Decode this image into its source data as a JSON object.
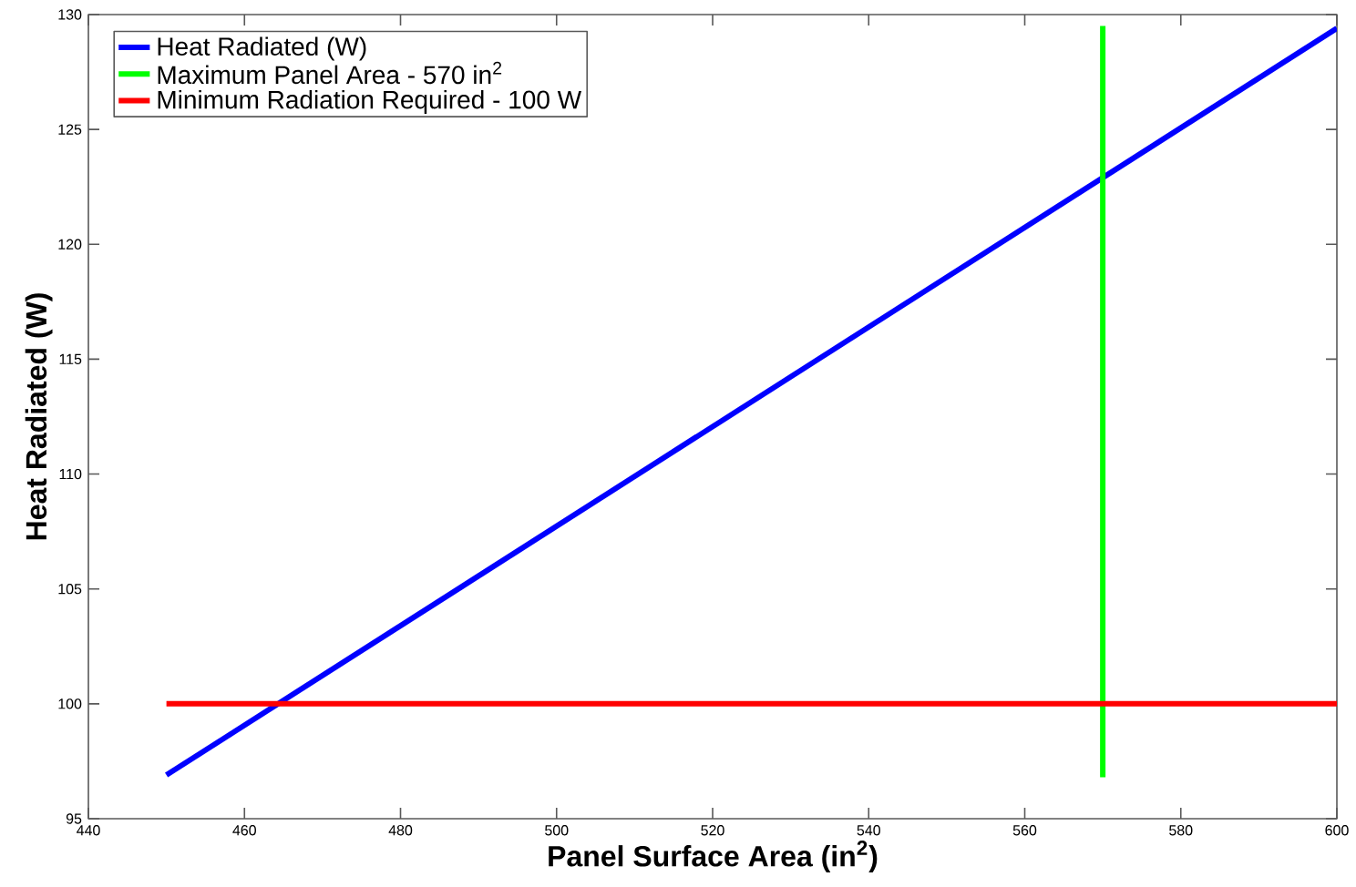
{
  "chart_data": {
    "type": "line",
    "xlabel": "Panel Surface Area (in$^{2}$)",
    "ylabel": "Heat Radiated (W)",
    "series": [
      {
        "name": "Heat Radiated (W)",
        "color": "#0000ff",
        "x": [
          450,
          600
        ],
        "values": [
          96.9,
          129.4
        ]
      },
      {
        "name": "Maximum Panel Area - 570 in$^{2}$",
        "color": "#00ff00",
        "x": [
          570,
          570
        ],
        "values": [
          96.8,
          129.5
        ]
      },
      {
        "name": "Minimum Radiation Required - 100 W",
        "color": "#ff0000",
        "x": [
          450,
          600
        ],
        "values": [
          100,
          100
        ]
      }
    ],
    "xlim": [
      440,
      600
    ],
    "ylim": [
      95,
      130
    ],
    "xticks": [
      440,
      460,
      480,
      500,
      520,
      540,
      560,
      580,
      600
    ],
    "yticks": [
      95,
      100,
      105,
      110,
      115,
      120,
      125,
      130
    ],
    "grid": false,
    "legend": "top left",
    "marker": "none",
    "line_style": "solid"
  }
}
